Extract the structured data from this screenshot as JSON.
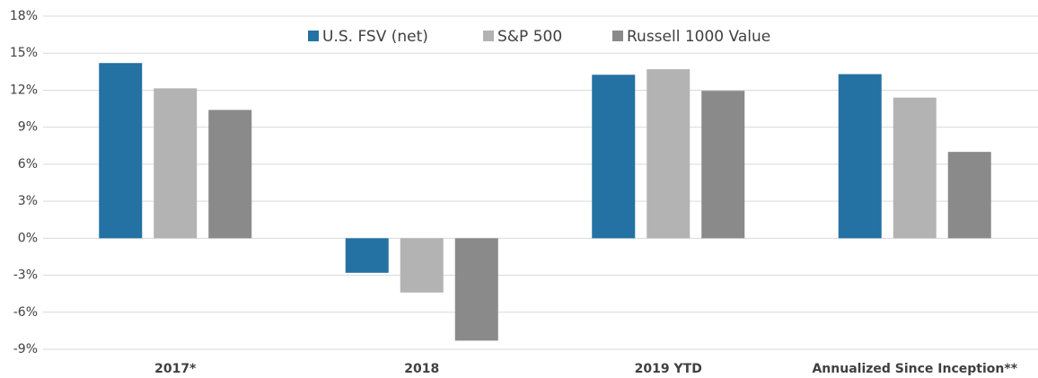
{
  "chart_data": {
    "type": "bar",
    "categories": [
      "2017*",
      "2018",
      "2019 YTD",
      "Annualized Since Inception**"
    ],
    "series": [
      {
        "name": "U.S. FSV (net)",
        "color": "#2471a3",
        "values": [
          14.2,
          -2.8,
          13.25,
          13.3
        ]
      },
      {
        "name": "S&P 500",
        "color": "#b3b3b3",
        "values": [
          12.15,
          -4.4,
          13.7,
          11.4
        ]
      },
      {
        "name": "Russell 1000 Value",
        "color": "#8a8a8a",
        "values": [
          10.4,
          -8.3,
          11.95,
          7.0
        ]
      }
    ],
    "ylim": [
      -9,
      18
    ],
    "yticks": [
      {
        "value": -9,
        "label": "-9%"
      },
      {
        "value": -6,
        "label": "-6%"
      },
      {
        "value": -3,
        "label": "-3%"
      },
      {
        "value": 0,
        "label": "0%"
      },
      {
        "value": 3,
        "label": "3%"
      },
      {
        "value": 6,
        "label": "6%"
      },
      {
        "value": 9,
        "label": "9%"
      },
      {
        "value": 12,
        "label": "12%"
      },
      {
        "value": 15,
        "label": "15%"
      },
      {
        "value": 18,
        "label": "18%"
      }
    ],
    "grid": true,
    "legend": "top"
  }
}
